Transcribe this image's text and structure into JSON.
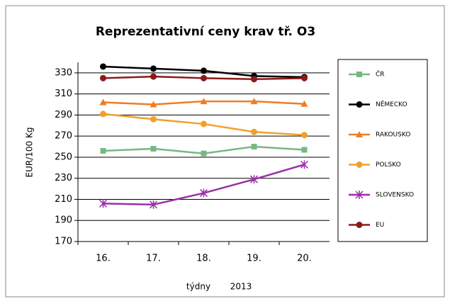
{
  "chart_data": {
    "type": "line",
    "title": "Reprezentativní ceny krav tř. O3",
    "y_label": "EUR/100 Kg",
    "x_label": "týdny",
    "x_sublabel": "2013",
    "categories": [
      "16.",
      "17.",
      "18.",
      "19.",
      "20."
    ],
    "ylim": [
      170,
      340
    ],
    "yticks": [
      170,
      190,
      210,
      230,
      250,
      270,
      290,
      310,
      330
    ],
    "grid": true,
    "legend": "right",
    "series": [
      {
        "name": "ČR",
        "color": "#77b882",
        "marker": "square",
        "values": [
          256,
          258,
          253.5,
          260,
          257
        ]
      },
      {
        "name": "NĚMECKO",
        "color": "#000000",
        "marker": "circle",
        "values": [
          336,
          334,
          332,
          327,
          326
        ]
      },
      {
        "name": "RAKOUSKO",
        "color": "#f07c22",
        "marker": "triangle",
        "values": [
          302,
          300,
          303,
          303,
          300.5
        ]
      },
      {
        "name": "POLSKO",
        "color": "#f0a02c",
        "marker": "circle",
        "values": [
          291,
          286,
          281.5,
          274,
          271
        ]
      },
      {
        "name": "SLOVENSKO",
        "color": "#9a2fa8",
        "marker": "star",
        "values": [
          206,
          205,
          216,
          229,
          243
        ]
      },
      {
        "name": "EU",
        "color": "#8b1a1a",
        "marker": "circle",
        "values": [
          325,
          326.5,
          325,
          324,
          325
        ]
      }
    ]
  }
}
